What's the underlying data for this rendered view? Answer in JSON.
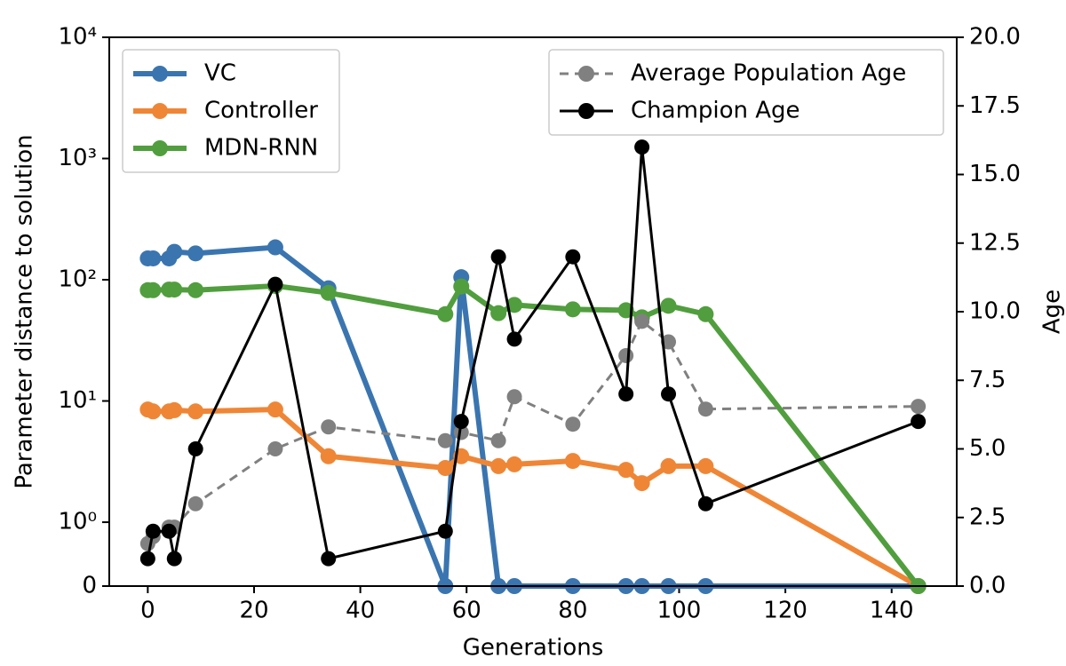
{
  "chart_data": {
    "type": "line",
    "xlabel": "Generations",
    "ylabel": "Parameter distance to solution",
    "y2label": "Age",
    "yscale": "symlog",
    "x": [
      0,
      1,
      4,
      5,
      9,
      24,
      34,
      56,
      59,
      66,
      69,
      80,
      90,
      93,
      98,
      105,
      145
    ],
    "xlim": [
      -7.25,
      152.25
    ],
    "xticks": [
      0,
      20,
      40,
      60,
      80,
      100,
      120,
      140
    ],
    "ylim": [
      0,
      10000
    ],
    "yticks": [
      0,
      {
        "value": 1,
        "label": "10⁰"
      },
      {
        "value": 10,
        "label": "10¹"
      },
      {
        "value": 100,
        "label": "10²"
      },
      {
        "value": 1000,
        "label": "10³"
      },
      {
        "value": 10000,
        "label": "10⁴"
      }
    ],
    "y2lim": [
      0,
      20
    ],
    "y2ticks": [
      {
        "value": 0,
        "label": "0.0"
      },
      {
        "value": 2.5,
        "label": "2.5"
      },
      {
        "value": 5,
        "label": "5.0"
      },
      {
        "value": 7.5,
        "label": "7.5"
      },
      {
        "value": 10,
        "label": "10.0"
      },
      {
        "value": 12.5,
        "label": "12.5"
      },
      {
        "value": 15,
        "label": "15.0"
      },
      {
        "value": 17.5,
        "label": "17.5"
      },
      {
        "value": 20,
        "label": "20.0"
      }
    ],
    "series": [
      {
        "name": "VC",
        "color": "#3a75b0",
        "values": [
          150,
          150,
          150,
          170,
          165,
          185,
          85,
          0,
          105,
          0,
          0,
          0,
          0,
          0,
          0,
          0,
          0
        ]
      },
      {
        "name": "Controller",
        "color": "#ef8636",
        "values": [
          8.5,
          8.2,
          8.2,
          8.4,
          8.2,
          8.5,
          3.5,
          2.8,
          3.5,
          2.9,
          3.0,
          3.2,
          2.7,
          2.1,
          2.9,
          2.9,
          0
        ]
      },
      {
        "name": "MDN-RNN",
        "color": "#519e3e",
        "values": [
          82,
          82,
          83,
          83,
          82,
          89,
          78,
          52,
          88,
          53,
          62,
          57,
          56,
          49,
          61,
          52,
          0
        ]
      },
      {
        "name": "Average Population Age",
        "color": "#808080",
        "axis": "y2",
        "linestyle": "dashed",
        "values": [
          1.55,
          1.8,
          2.15,
          2.15,
          3.0,
          5.0,
          5.8,
          5.3,
          5.6,
          5.3,
          6.9,
          5.9,
          8.4,
          9.65,
          8.9,
          6.45,
          6.55
        ]
      },
      {
        "name": "Champion Age",
        "color": "#000000",
        "axis": "y2",
        "values": [
          1,
          2,
          2,
          1,
          5,
          11,
          1,
          2,
          6,
          12,
          9,
          12,
          7,
          16,
          7,
          3,
          6
        ]
      }
    ]
  }
}
